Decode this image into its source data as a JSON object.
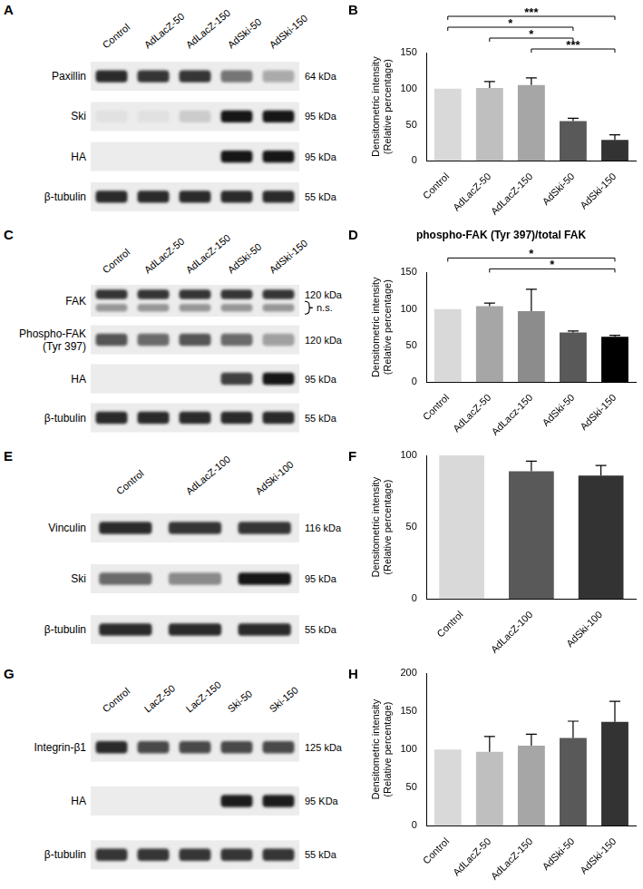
{
  "blots": [
    {
      "panel": "A",
      "lanes": [
        "Control",
        "AdLacZ-50",
        "AdLacZ-150",
        "AdSki-50",
        "AdSki-150"
      ],
      "rows": [
        {
          "label": "Paxillin",
          "size": "64 kDa",
          "bands": [
            0.9,
            0.85,
            0.85,
            0.55,
            0.3
          ]
        },
        {
          "label": "Ski",
          "size": "95 kDa",
          "bands": [
            0.05,
            0.05,
            0.15,
            1,
            1
          ]
        },
        {
          "label": "HA",
          "size": "95 kDa",
          "bands": [
            0,
            0,
            0,
            1,
            1
          ]
        },
        {
          "label": "β-tubulin",
          "size": "55 kDa",
          "bands": [
            0.9,
            0.9,
            0.9,
            0.9,
            0.9
          ]
        }
      ]
    },
    {
      "panel": "C",
      "lanes": [
        "Control",
        "AdLacZ-50",
        "AdLacZ-150",
        "AdSki-50",
        "AdSki-150"
      ],
      "rows": [
        {
          "label": "FAK",
          "size": "120 kDa",
          "bands": [
            0.85,
            0.85,
            0.85,
            0.85,
            0.85
          ],
          "secondary_bands": [
            0.4,
            0.4,
            0.4,
            0.4,
            0.4
          ],
          "note": "n.s."
        },
        {
          "label": [
            "Phospho-FAK",
            "(Tyr 397)"
          ],
          "size": "120 kDa",
          "bands": [
            0.7,
            0.6,
            0.7,
            0.6,
            0.35
          ]
        },
        {
          "label": "HA",
          "size": "95 kDa",
          "bands": [
            0,
            0,
            0,
            0.8,
            1
          ]
        },
        {
          "label": "β-tubulin",
          "size": "55 kDa",
          "bands": [
            0.9,
            0.9,
            0.9,
            0.9,
            0.9
          ]
        }
      ]
    },
    {
      "panel": "E",
      "lanes": [
        "Control",
        "AdLacZ-100",
        "AdSki-100"
      ],
      "rows": [
        {
          "label": "Vinculin",
          "size": "116 kDa",
          "bands": [
            0.9,
            0.85,
            0.85
          ]
        },
        {
          "label": "Ski",
          "size": "95 kDa",
          "bands": [
            0.6,
            0.45,
            1
          ]
        },
        {
          "label": "β-tubulin",
          "size": "55 kDa",
          "bands": [
            0.9,
            0.9,
            0.9
          ]
        }
      ]
    },
    {
      "panel": "G",
      "lanes": [
        "Control",
        "LacZ-50",
        "LacZ-150",
        "Ski-50",
        "Ski-150"
      ],
      "rows": [
        {
          "label": "Integrin-β1",
          "size": "125 kDa",
          "bands": [
            0.9,
            0.75,
            0.75,
            0.75,
            0.75
          ]
        },
        {
          "label": "HA",
          "size": "95 KDa",
          "bands": [
            0,
            0,
            0,
            0.95,
            0.95
          ]
        },
        {
          "label": "β-tubulin",
          "size": "55 kDa",
          "bands": [
            0.85,
            0.85,
            0.85,
            0.85,
            0.85
          ]
        }
      ]
    }
  ],
  "chart_data": [
    {
      "panel": "B",
      "type": "bar",
      "categories": [
        "Control",
        "AdLacZ-50",
        "AdLacZ-150",
        "AdSki-50",
        "AdSki-150"
      ],
      "values": [
        100,
        101,
        105,
        55,
        29
      ],
      "errors": [
        0,
        9,
        10,
        4,
        7
      ],
      "colors": [
        "#d9d9d9",
        "#bfbfbf",
        "#a6a6a6",
        "#595959",
        "#333333"
      ],
      "ylabel": [
        "Densitometric intensity",
        "(Relative percentage)"
      ],
      "ylim": [
        0,
        150
      ],
      "yticks": [
        0,
        50,
        100,
        150
      ],
      "grid": false,
      "annotations": [
        {
          "from": "Control",
          "to": "AdSki-150",
          "text": "***"
        },
        {
          "from": "Control",
          "to": "AdSki-50",
          "text": "*"
        },
        {
          "from": "AdLacZ-50",
          "to": "AdSki-50",
          "text": "*"
        },
        {
          "from": "AdLacZ-150",
          "to": "AdSki-150",
          "text": "***"
        }
      ]
    },
    {
      "panel": "D",
      "type": "bar",
      "title": "phospho-FAK (Tyr 397)/total FAK",
      "categories": [
        "Control",
        "AdLacZ-50",
        "AdLacz-150",
        "AdSki-50",
        "AdSki-150"
      ],
      "values": [
        100,
        104,
        97,
        68,
        62
      ],
      "errors": [
        0,
        4,
        30,
        2,
        2
      ],
      "colors": [
        "#d9d9d9",
        "#a6a6a6",
        "#8c8c8c",
        "#595959",
        "#000000"
      ],
      "ylabel": [
        "Densitometric intensity",
        "(Relative percentage)"
      ],
      "ylim": [
        0,
        150
      ],
      "yticks": [
        0,
        50,
        100,
        150
      ],
      "grid": false,
      "annotations": [
        {
          "from": "Control",
          "to": "AdSki-150",
          "text": "*"
        },
        {
          "from": "AdLacZ-50",
          "to": "AdSki-150",
          "text": "*"
        }
      ]
    },
    {
      "panel": "F",
      "type": "bar",
      "categories": [
        "Control",
        "AdLacZ-100",
        "AdSki-100"
      ],
      "values": [
        100,
        89,
        86
      ],
      "errors": [
        0,
        7,
        7
      ],
      "colors": [
        "#d9d9d9",
        "#595959",
        "#333333"
      ],
      "ylabel": [
        "Densitometric intensity",
        "(Relative percentage)"
      ],
      "ylim": [
        0,
        100
      ],
      "yticks": [
        0,
        50,
        100
      ],
      "grid": false
    },
    {
      "panel": "H",
      "type": "bar",
      "categories": [
        "Control",
        "AdLacZ-50",
        "AdLacZ-150",
        "AdSki-50",
        "AdSki-150"
      ],
      "values": [
        100,
        97,
        105,
        115,
        136
      ],
      "errors": [
        0,
        20,
        15,
        22,
        27
      ],
      "colors": [
        "#d9d9d9",
        "#bfbfbf",
        "#a6a6a6",
        "#595959",
        "#333333"
      ],
      "ylabel": [
        "Densitometric intensity",
        "(Relative percentage)"
      ],
      "ylim": [
        0,
        200
      ],
      "yticks": [
        0,
        50,
        100,
        150,
        200
      ],
      "grid": false
    }
  ]
}
